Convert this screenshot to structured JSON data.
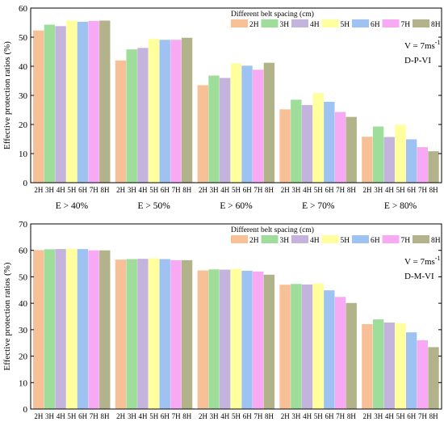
{
  "chart_data": [
    {
      "type": "bar",
      "ylabel": "Effective protection ratios (%)",
      "ylim": [
        0,
        60
      ],
      "yticks": [
        0,
        10,
        20,
        30,
        40,
        50,
        60
      ],
      "groups": [
        "E > 40%",
        "E > 50%",
        "E > 60%",
        "E > 70%",
        "E > 80%"
      ],
      "bar_tick_labels": [
        "2H",
        "3H",
        "4H",
        "5H",
        "6H",
        "7H",
        "8H"
      ],
      "legend_title": "Different belt spacing (cm)",
      "annotation_v": "V = 7ms",
      "annotation_sup": "-1",
      "annotation_case": "D-P-VI",
      "series": [
        {
          "name": "2H",
          "color": "#f7c097",
          "values": [
            52.3,
            42.0,
            33.5,
            25.2,
            15.8
          ]
        },
        {
          "name": "3H",
          "color": "#9edd9a",
          "values": [
            54.3,
            45.8,
            36.8,
            28.5,
            19.3
          ]
        },
        {
          "name": "4H",
          "color": "#c3b3dd",
          "values": [
            53.8,
            46.3,
            36.0,
            26.7,
            15.7
          ]
        },
        {
          "name": "5H",
          "color": "#ffff9e",
          "values": [
            55.7,
            49.4,
            41.0,
            30.8,
            19.9
          ]
        },
        {
          "name": "6H",
          "color": "#9ec3f3",
          "values": [
            55.3,
            49.1,
            40.2,
            27.8,
            14.9
          ]
        },
        {
          "name": "7H",
          "color": "#f7a9f3",
          "values": [
            55.6,
            49.1,
            38.8,
            24.3,
            12.2
          ]
        },
        {
          "name": "8H",
          "color": "#b3b38b",
          "values": [
            55.7,
            49.8,
            41.2,
            22.6,
            10.8
          ]
        }
      ]
    },
    {
      "type": "bar",
      "ylabel": "Effective protection ratios (%)",
      "ylim": [
        0,
        70
      ],
      "yticks": [
        0,
        10,
        20,
        30,
        40,
        50,
        60,
        70
      ],
      "groups": [
        "E > 40%",
        "E > 50%",
        "E > 60%",
        "E > 70%",
        "E > 80%"
      ],
      "bar_tick_labels": [
        "2H",
        "3H",
        "4H",
        "5H",
        "6H",
        "7H",
        "8H"
      ],
      "legend_title": "Different belt spacing (cm)",
      "annotation_v": "V = 7ms",
      "annotation_sup": "-1",
      "annotation_case": "D-M-VI",
      "series": [
        {
          "name": "2H",
          "color": "#f7c097",
          "values": [
            60.1,
            56.5,
            52.4,
            47.0,
            32.1
          ]
        },
        {
          "name": "3H",
          "color": "#9edd9a",
          "values": [
            60.4,
            56.7,
            52.8,
            47.3,
            33.9
          ]
        },
        {
          "name": "4H",
          "color": "#c3b3dd",
          "values": [
            60.5,
            56.8,
            52.7,
            47.1,
            32.7
          ]
        },
        {
          "name": "5H",
          "color": "#ffff9e",
          "values": [
            60.6,
            57.0,
            53.0,
            47.5,
            32.5
          ]
        },
        {
          "name": "6H",
          "color": "#9ec3f3",
          "values": [
            60.5,
            56.7,
            52.3,
            44.9,
            29.0
          ]
        },
        {
          "name": "7H",
          "color": "#f7a9f3",
          "values": [
            60.0,
            56.3,
            52.0,
            42.4,
            26.0
          ]
        },
        {
          "name": "8H",
          "color": "#b3b38b",
          "values": [
            60.0,
            56.3,
            50.8,
            40.1,
            23.4
          ]
        }
      ]
    }
  ]
}
